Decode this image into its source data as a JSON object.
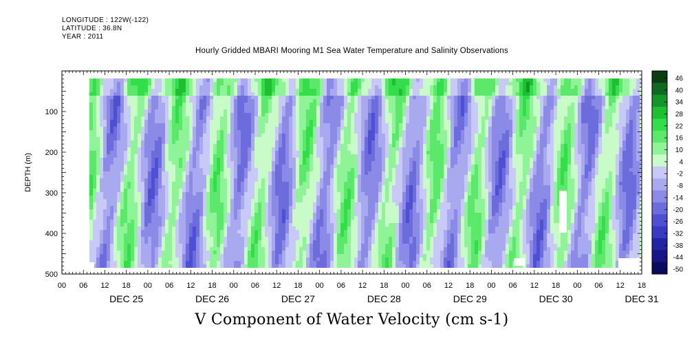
{
  "header": {
    "longitude": "LONGITUDE : 122W(-122)",
    "latitude": "LATITUDE : 36.8N",
    "year": "YEAR : 2011",
    "title": "Hourly Gridded MBARI Mooring M1 Sea Water Temperature and Salinity Observations"
  },
  "chart_data": {
    "type": "heatmap",
    "title": "Hourly Gridded MBARI Mooring M1 Sea Water Temperature and Salinity Observations",
    "variable_label": "V Component of Water Velocity (cm s-1)",
    "ylabel": "DEPTH (m)",
    "yticks": [
      "100",
      "200",
      "300",
      "400",
      "500"
    ],
    "ylim": [
      500,
      0
    ],
    "xlim_hours": [
      0,
      162
    ],
    "hour_ticks": [
      "00",
      "06",
      "12",
      "18",
      "00",
      "06",
      "12",
      "18",
      "00",
      "06",
      "12",
      "18",
      "00",
      "06",
      "12",
      "18",
      "00",
      "06",
      "12",
      "18",
      "00",
      "06",
      "12",
      "18",
      "00",
      "06",
      "12",
      "18"
    ],
    "days": [
      "DEC 25",
      "DEC 26",
      "DEC 27",
      "DEC 28",
      "DEC 29",
      "DEC 30",
      "DEC 31"
    ],
    "colorbar_levels": [
      "46",
      "40",
      "34",
      "28",
      "22",
      "16",
      "10",
      "4",
      "-2",
      "-8",
      "-14",
      "-20",
      "-26",
      "-32",
      "-38",
      "-44",
      "-50"
    ],
    "colorbar_colors": [
      "#0a3d14",
      "#0f6a1f",
      "#15962a",
      "#1fbf33",
      "#34dd4a",
      "#5ce86a",
      "#8ff398",
      "#c8fbc8",
      "#c9c9f7",
      "#a9a9ef",
      "#8b8be7",
      "#6c6cdd",
      "#4f4fd3",
      "#3939c5",
      "#2323a5",
      "#151585",
      "#0a0a60"
    ],
    "notes": "Filled contour of V velocity vs time (Dec 25-31, 2011) and depth (~20-490 m); alternating green (positive) and blue (negative) vertical bands."
  }
}
